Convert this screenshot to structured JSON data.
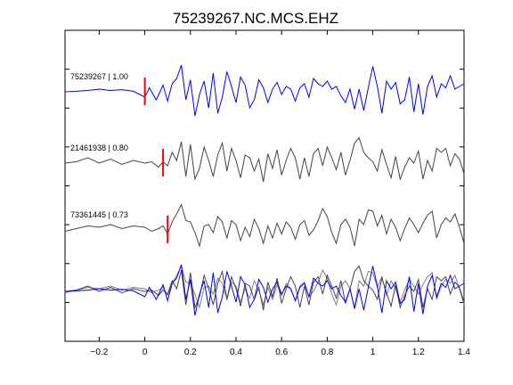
{
  "chart_data": {
    "type": "line",
    "title": "75239267.NC.MCS.EHZ",
    "xlabel": "",
    "ylabel": "",
    "xlim": [
      -0.35,
      1.4
    ],
    "xticks": [
      -0.2,
      0,
      0.2,
      0.4,
      0.6,
      0.8,
      1,
      1.2,
      1.4
    ],
    "xtick_labels": [
      "−0.2",
      "0",
      "0.2",
      "0.4",
      "0.6",
      "0.8",
      "1",
      "1.2",
      "1.4"
    ],
    "grid": false,
    "colors": {
      "primary": "#0000ff",
      "secondary": "#444444",
      "overlay_gray": "#7f7f7f",
      "pick": "#ff0000"
    },
    "traces": [
      {
        "label": "75239267 | 1.00",
        "color": "#0000ff",
        "pick_time": 0.0,
        "t": [
          -0.35,
          -0.3,
          -0.25,
          -0.2,
          -0.15,
          -0.1,
          -0.05,
          0.0,
          0.02,
          0.05,
          0.08,
          0.1,
          0.12,
          0.14,
          0.16,
          0.18,
          0.2,
          0.22,
          0.24,
          0.26,
          0.28,
          0.3,
          0.32,
          0.34,
          0.36,
          0.38,
          0.4,
          0.42,
          0.44,
          0.46,
          0.48,
          0.5,
          0.52,
          0.54,
          0.56,
          0.58,
          0.6,
          0.62,
          0.64,
          0.66,
          0.68,
          0.7,
          0.72,
          0.74,
          0.76,
          0.78,
          0.8,
          0.82,
          0.84,
          0.86,
          0.88,
          0.9,
          0.92,
          0.94,
          0.96,
          0.98,
          1.0,
          1.02,
          1.04,
          1.06,
          1.08,
          1.1,
          1.12,
          1.14,
          1.16,
          1.18,
          1.2,
          1.22,
          1.24,
          1.26,
          1.28,
          1.3,
          1.32,
          1.34,
          1.36,
          1.38,
          1.4
        ],
        "a": [
          0.0,
          0.02,
          0.05,
          0.1,
          0.05,
          0.08,
          0.02,
          -0.2,
          0.15,
          -0.3,
          0.25,
          -0.35,
          0.3,
          0.5,
          1.0,
          -0.3,
          0.45,
          -0.9,
          -0.1,
          0.4,
          -0.6,
          0.7,
          -0.8,
          -0.2,
          0.75,
          0.2,
          -0.4,
          0.55,
          0.25,
          -0.6,
          -0.3,
          0.45,
          0.15,
          -0.4,
          0.1,
          0.35,
          -0.1,
          0.2,
          0.1,
          -0.35,
          0.15,
          0.3,
          -0.2,
          0.5,
          0.3,
          0.2,
          0.4,
          0.1,
          0.2,
          -0.15,
          -0.4,
          0.1,
          -0.65,
          0.1,
          -0.7,
          0.15,
          0.95,
          0.2,
          -0.8,
          0.4,
          0.1,
          0.35,
          -0.45,
          -0.3,
          0.55,
          -0.75,
          0.3,
          -0.85,
          0.2,
          0.6,
          -0.2,
          0.3,
          0.15,
          0.6,
          0.1,
          0.2,
          0.3
        ]
      },
      {
        "label": "21461938 | 0.80",
        "color": "#444444",
        "pick_time": 0.08,
        "t": [
          -0.35,
          -0.3,
          -0.25,
          -0.2,
          -0.15,
          -0.1,
          -0.05,
          0.0,
          0.03,
          0.06,
          0.08,
          0.1,
          0.12,
          0.14,
          0.16,
          0.18,
          0.2,
          0.22,
          0.24,
          0.26,
          0.28,
          0.3,
          0.32,
          0.34,
          0.36,
          0.38,
          0.4,
          0.42,
          0.44,
          0.46,
          0.48,
          0.5,
          0.52,
          0.54,
          0.56,
          0.58,
          0.6,
          0.62,
          0.64,
          0.66,
          0.68,
          0.7,
          0.72,
          0.74,
          0.76,
          0.78,
          0.8,
          0.82,
          0.84,
          0.86,
          0.88,
          0.9,
          0.92,
          0.94,
          0.96,
          0.98,
          1.0,
          1.02,
          1.04,
          1.06,
          1.08,
          1.1,
          1.12,
          1.14,
          1.16,
          1.18,
          1.2,
          1.22,
          1.24,
          1.26,
          1.28,
          1.3,
          1.32,
          1.34,
          1.36,
          1.38,
          1.4
        ],
        "a": [
          0.0,
          0.05,
          0.2,
          0.0,
          0.15,
          -0.05,
          0.1,
          0.0,
          0.05,
          -0.15,
          0.05,
          -0.1,
          0.4,
          0.1,
          0.8,
          -0.5,
          0.7,
          -0.6,
          -0.2,
          0.6,
          0.1,
          -0.5,
          0.3,
          0.75,
          -0.3,
          0.55,
          0.1,
          -0.55,
          0.3,
          0.2,
          -0.3,
          0.15,
          -0.7,
          0.35,
          -0.2,
          0.5,
          -0.45,
          0.1,
          0.55,
          0.2,
          -0.6,
          0.2,
          -0.5,
          0.35,
          0.55,
          -0.1,
          0.6,
          0.2,
          -0.25,
          0.4,
          -0.45,
          0.1,
          0.75,
          0.95,
          0.4,
          0.2,
          0.05,
          -0.3,
          0.5,
          -0.05,
          -0.55,
          0.25,
          -0.6,
          -0.15,
          0.2,
          0.0,
          0.45,
          -0.6,
          0.1,
          -0.3,
          0.55,
          0.4,
          0.55,
          -0.1,
          0.35,
          0.15,
          -0.4
        ]
      },
      {
        "label": "73361445 | 0.73",
        "color": "#444444",
        "pick_time": 0.1,
        "t": [
          -0.35,
          -0.3,
          -0.25,
          -0.2,
          -0.15,
          -0.1,
          -0.05,
          0.0,
          0.03,
          0.06,
          0.08,
          0.1,
          0.12,
          0.14,
          0.16,
          0.18,
          0.2,
          0.22,
          0.24,
          0.26,
          0.28,
          0.3,
          0.32,
          0.34,
          0.36,
          0.38,
          0.4,
          0.42,
          0.44,
          0.46,
          0.48,
          0.5,
          0.52,
          0.54,
          0.56,
          0.58,
          0.6,
          0.62,
          0.64,
          0.66,
          0.68,
          0.7,
          0.72,
          0.74,
          0.76,
          0.78,
          0.8,
          0.82,
          0.84,
          0.86,
          0.88,
          0.9,
          0.92,
          0.94,
          0.96,
          0.98,
          1.0,
          1.02,
          1.04,
          1.06,
          1.08,
          1.1,
          1.12,
          1.14,
          1.16,
          1.18,
          1.2,
          1.22,
          1.24,
          1.26,
          1.28,
          1.3,
          1.32,
          1.34,
          1.36,
          1.38,
          1.4
        ],
        "a": [
          -0.05,
          0.05,
          0.15,
          0.1,
          0.2,
          0.05,
          0.15,
          0.1,
          -0.05,
          0.05,
          0.15,
          -0.15,
          0.3,
          0.6,
          0.95,
          0.35,
          0.3,
          -0.1,
          -0.6,
          0.15,
          0.2,
          -0.1,
          0.5,
          0.3,
          -0.3,
          0.35,
          0.2,
          -0.4,
          0.1,
          -0.25,
          0.4,
          0.05,
          -0.5,
          0.15,
          -0.3,
          0.25,
          -0.15,
          0.3,
          0.1,
          -0.35,
          0.2,
          0.35,
          -0.2,
          0.0,
          0.35,
          0.8,
          0.5,
          -0.1,
          -0.5,
          0.2,
          0.4,
          0.1,
          -0.6,
          0.4,
          0.2,
          0.75,
          0.7,
          0.15,
          0.55,
          -0.15,
          0.4,
          0.1,
          -0.4,
          0.05,
          0.45,
          0.2,
          -0.1,
          0.25,
          0.55,
          0.7,
          -0.3,
          0.2,
          0.45,
          0.3,
          0.6,
          0.1,
          -0.5
        ]
      }
    ],
    "overlay": {
      "label": "",
      "description_of_rows": "all three traces overlaid at bottom"
    }
  }
}
